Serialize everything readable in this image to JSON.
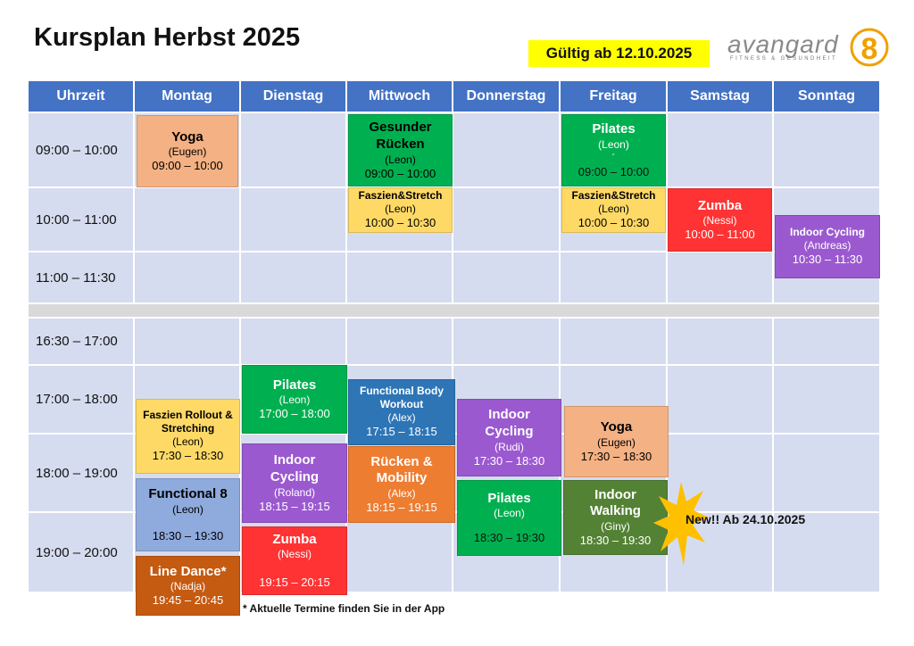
{
  "title": "Kursplan Herbst 2025",
  "valid_from": "Gültig ab 12.10.2025",
  "logo": {
    "word": "avangard",
    "subtitle": "FITNESS & GESUNDHEIT",
    "number": "8"
  },
  "columns": [
    "Uhrzeit",
    "Montag",
    "Dienstag",
    "Mittwoch",
    "Donnerstag",
    "Freitag",
    "Samstag",
    "Sonntag"
  ],
  "times": [
    "09:00 – 10:00",
    "10:00 – 11:00",
    "11:00 – 11:30",
    "16:30 – 17:00",
    "17:00 – 18:00",
    "18:00 – 19:00",
    "19:00 – 20:00"
  ],
  "courses": {
    "yoga_mo": {
      "name": "Yoga",
      "trainer": "(Eugen)",
      "time": "09:00 – 10:00"
    },
    "gesunder_mi": {
      "name": "Gesunder Rücken",
      "trainer": "(Leon)",
      "time": "09:00 – 10:00"
    },
    "pilates_fr": {
      "name": "Pilates",
      "trainer": "(Leon)",
      "extra": "´",
      "time": "09:00 – 10:00"
    },
    "faszien_mi": {
      "name": "Faszien&Stretch",
      "trainer": "(Leon)",
      "time": "10:00 – 10:30"
    },
    "faszien_fr": {
      "name": "Faszien&Stretch",
      "trainer": "(Leon)",
      "time": "10:00 – 10:30"
    },
    "zumba_sa": {
      "name": "Zumba",
      "trainer": "(Nessi)",
      "time": "10:00 – 11:00"
    },
    "cycling_so": {
      "name": "Indoor Cycling",
      "trainer": "(Andreas)",
      "time": "10:30 – 11:30"
    },
    "pilates_di": {
      "name": "Pilates",
      "trainer": "(Leon)",
      "time": "17:00 – 18:00"
    },
    "fbw_mi": {
      "name": "Functional Body Workout",
      "trainer": "(Alex)",
      "time": "17:15 – 18:15"
    },
    "cycling_do": {
      "name": "Indoor Cycling",
      "trainer": "(Rudi)",
      "time": "17:30 – 18:30"
    },
    "yoga_fr": {
      "name": "Yoga",
      "trainer": "(Eugen)",
      "time": "17:30 – 18:30"
    },
    "faszien_rollout_mo": {
      "name": "Faszien Rollout & Stretching",
      "trainer": "(Leon)",
      "time": "17:30 – 18:30"
    },
    "cycling_di": {
      "name": "Indoor Cycling",
      "trainer": "(Roland)",
      "time": "18:15 – 19:15"
    },
    "ruecken_mi": {
      "name": "Rücken & Mobility",
      "trainer": "(Alex)",
      "time": "18:15 – 19:15"
    },
    "functional8_mo": {
      "name": "Functional 8",
      "trainer": "(Leon)",
      "time": "18:30 – 19:30"
    },
    "pilates_do": {
      "name": "Pilates",
      "trainer": "(Leon)",
      "time": "18:30 – 19:30"
    },
    "walking_fr": {
      "name": "Indoor Walking",
      "trainer": "(Giny)",
      "time": "18:30 – 19:30"
    },
    "zumba_di": {
      "name": "Zumba",
      "trainer": "(Nessi)",
      "time": "19:15 – 20:15"
    },
    "linedance_mo": {
      "name": "Line Dance*",
      "trainer": "(Nadja)",
      "time": "19:45 – 20:45"
    }
  },
  "new_badge": "New!! Ab 24.10.2025",
  "footnote": "* Aktuelle Termine finden Sie in der App",
  "colors": {
    "header": "#4472c4",
    "cell": "#d6dcef",
    "separator": "#d9d9d9",
    "highlight": "#ffff00",
    "orange_light": "#f4b183",
    "green": "#00b050",
    "yellow": "#ffd966",
    "red": "#ff3333",
    "purple": "#9b59d0",
    "blue": "#2e75b6",
    "orange": "#ed7d31",
    "periwinkle": "#8faadc",
    "olive": "#548235",
    "brown": "#c55a11",
    "burst": "#ffc000"
  }
}
